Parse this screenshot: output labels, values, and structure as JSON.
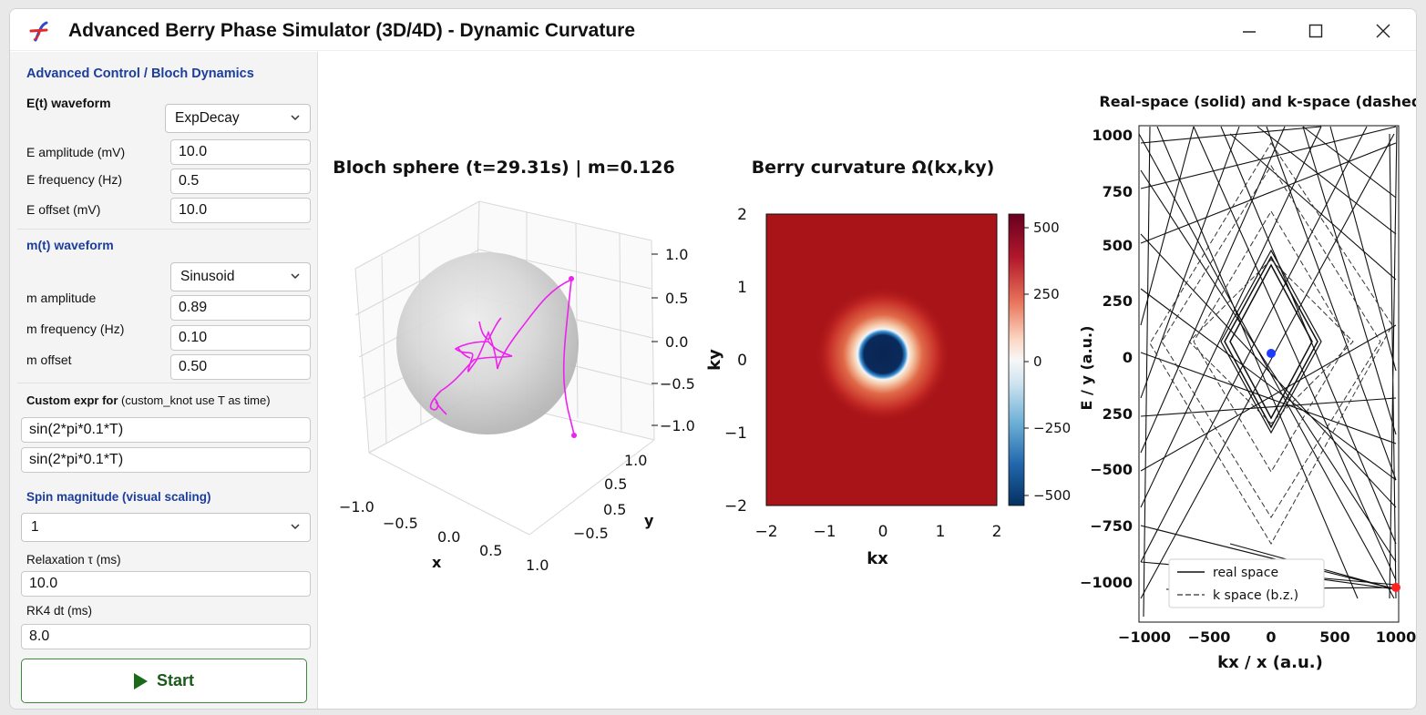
{
  "window": {
    "title": "Advanced Berry Phase Simulator (3D/4D) - Dynamic Curvature",
    "minimize_glyph": "—",
    "close_glyph": "✕"
  },
  "panel": {
    "header": "Advanced Control / Bloch Dynamics",
    "e_waveform_label": "E(t) waveform",
    "e_waveform_value": "ExpDecay",
    "e_amp_label": "E amplitude (mV)",
    "e_amp_value": "10.0",
    "e_freq_label": "E frequency (Hz)",
    "e_freq_value": "0.5",
    "e_offset_label": "E offset (mV)",
    "e_offset_value": "10.0",
    "m_waveform_header": "m(t) waveform",
    "m_waveform_value": "Sinusoid",
    "m_amp_label": "m amplitude",
    "m_amp_value": "0.89",
    "m_freq_label": "m frequency (Hz)",
    "m_freq_value": "0.10",
    "m_offset_label": "m offset",
    "m_offset_value": "0.50",
    "custom_label_bold": "Custom expr for",
    "custom_label_rest": "(custom_knot use T as time)",
    "custom_expr_1": "sin(2*pi*0.1*T)",
    "custom_expr_2": "sin(2*pi*0.1*T)",
    "spin_header": "Spin magnitude (visual scaling)",
    "spin_value": "1",
    "relax_label": "Relaxation τ (ms)",
    "relax_value": "10.0",
    "rk4_label": "RK4 dt (ms)",
    "rk4_value": "8.0",
    "start_label": "Start"
  },
  "bloch": {
    "title": "Bloch sphere (t=29.31s) | m=0.126",
    "x_label": "x",
    "y_label": "y",
    "x_ticks": [
      "−1.0",
      "−0.5",
      "0.0",
      "0.5",
      "1.0"
    ],
    "y_ticks": [
      "−0.5",
      "0.5",
      "1.0"
    ],
    "y_tick_near": "0.5",
    "z_ticks": [
      "1.0",
      "0.5",
      "0.0",
      "−0.5",
      "−1.0"
    ],
    "trajectory_color": "#ee22ee"
  },
  "chart_data": [
    {
      "type": "heatmap",
      "title": "Berry curvature Ω(kx,ky)",
      "xlabel": "kx",
      "ylabel": "ky",
      "xlim": [
        -2,
        2
      ],
      "ylim": [
        -2,
        2
      ],
      "x_ticks": [
        "−2",
        "−1",
        "0",
        "1",
        "2"
      ],
      "y_ticks": [
        "2",
        "1",
        "0",
        "−1",
        "−2"
      ],
      "colorbar_ticks": [
        "500",
        "250",
        "0",
        "−250",
        "−500"
      ],
      "colorbar_range": [
        -550,
        550
      ],
      "colormap": "RdBu_r",
      "feature": "negative (deep blue) core centered at (0,0) with white/orange ring, red (positive) elsewhere"
    },
    {
      "type": "line",
      "title": "Real-space (solid) and k-space (dashed)",
      "xlabel": "kx / x (a.u.)",
      "ylabel": "E / y (a.u.)",
      "xlim": [
        -1100,
        1100
      ],
      "ylim": [
        -1150,
        1000
      ],
      "x_ticks": [
        "−1000",
        "−500",
        "0",
        "500",
        "1000"
      ],
      "y_ticks": [
        "1000",
        "750",
        "500",
        "250",
        "0",
        "250",
        "−500",
        "−750",
        "−1000"
      ],
      "legend": [
        "real space",
        "k space (b.z.)"
      ],
      "legend_position": "lower-center",
      "markers": [
        {
          "name": "current k-space point",
          "x": 0,
          "y": 10,
          "color": "#1f3bff"
        },
        {
          "name": "current real-space point",
          "x": 1000,
          "y": -1030,
          "color": "#ff2222"
        }
      ],
      "diamonds": [
        {
          "style": "solid",
          "half_width": 270,
          "half_height": 370
        },
        {
          "style": "solid",
          "half_width": 320,
          "half_height": 430
        },
        {
          "style": "dashed",
          "half_width": 360,
          "half_height": 360
        },
        {
          "style": "dashed",
          "half_width": 570,
          "half_height": 680
        },
        {
          "style": "dashed",
          "half_width": 810,
          "half_height": 960
        }
      ]
    }
  ]
}
